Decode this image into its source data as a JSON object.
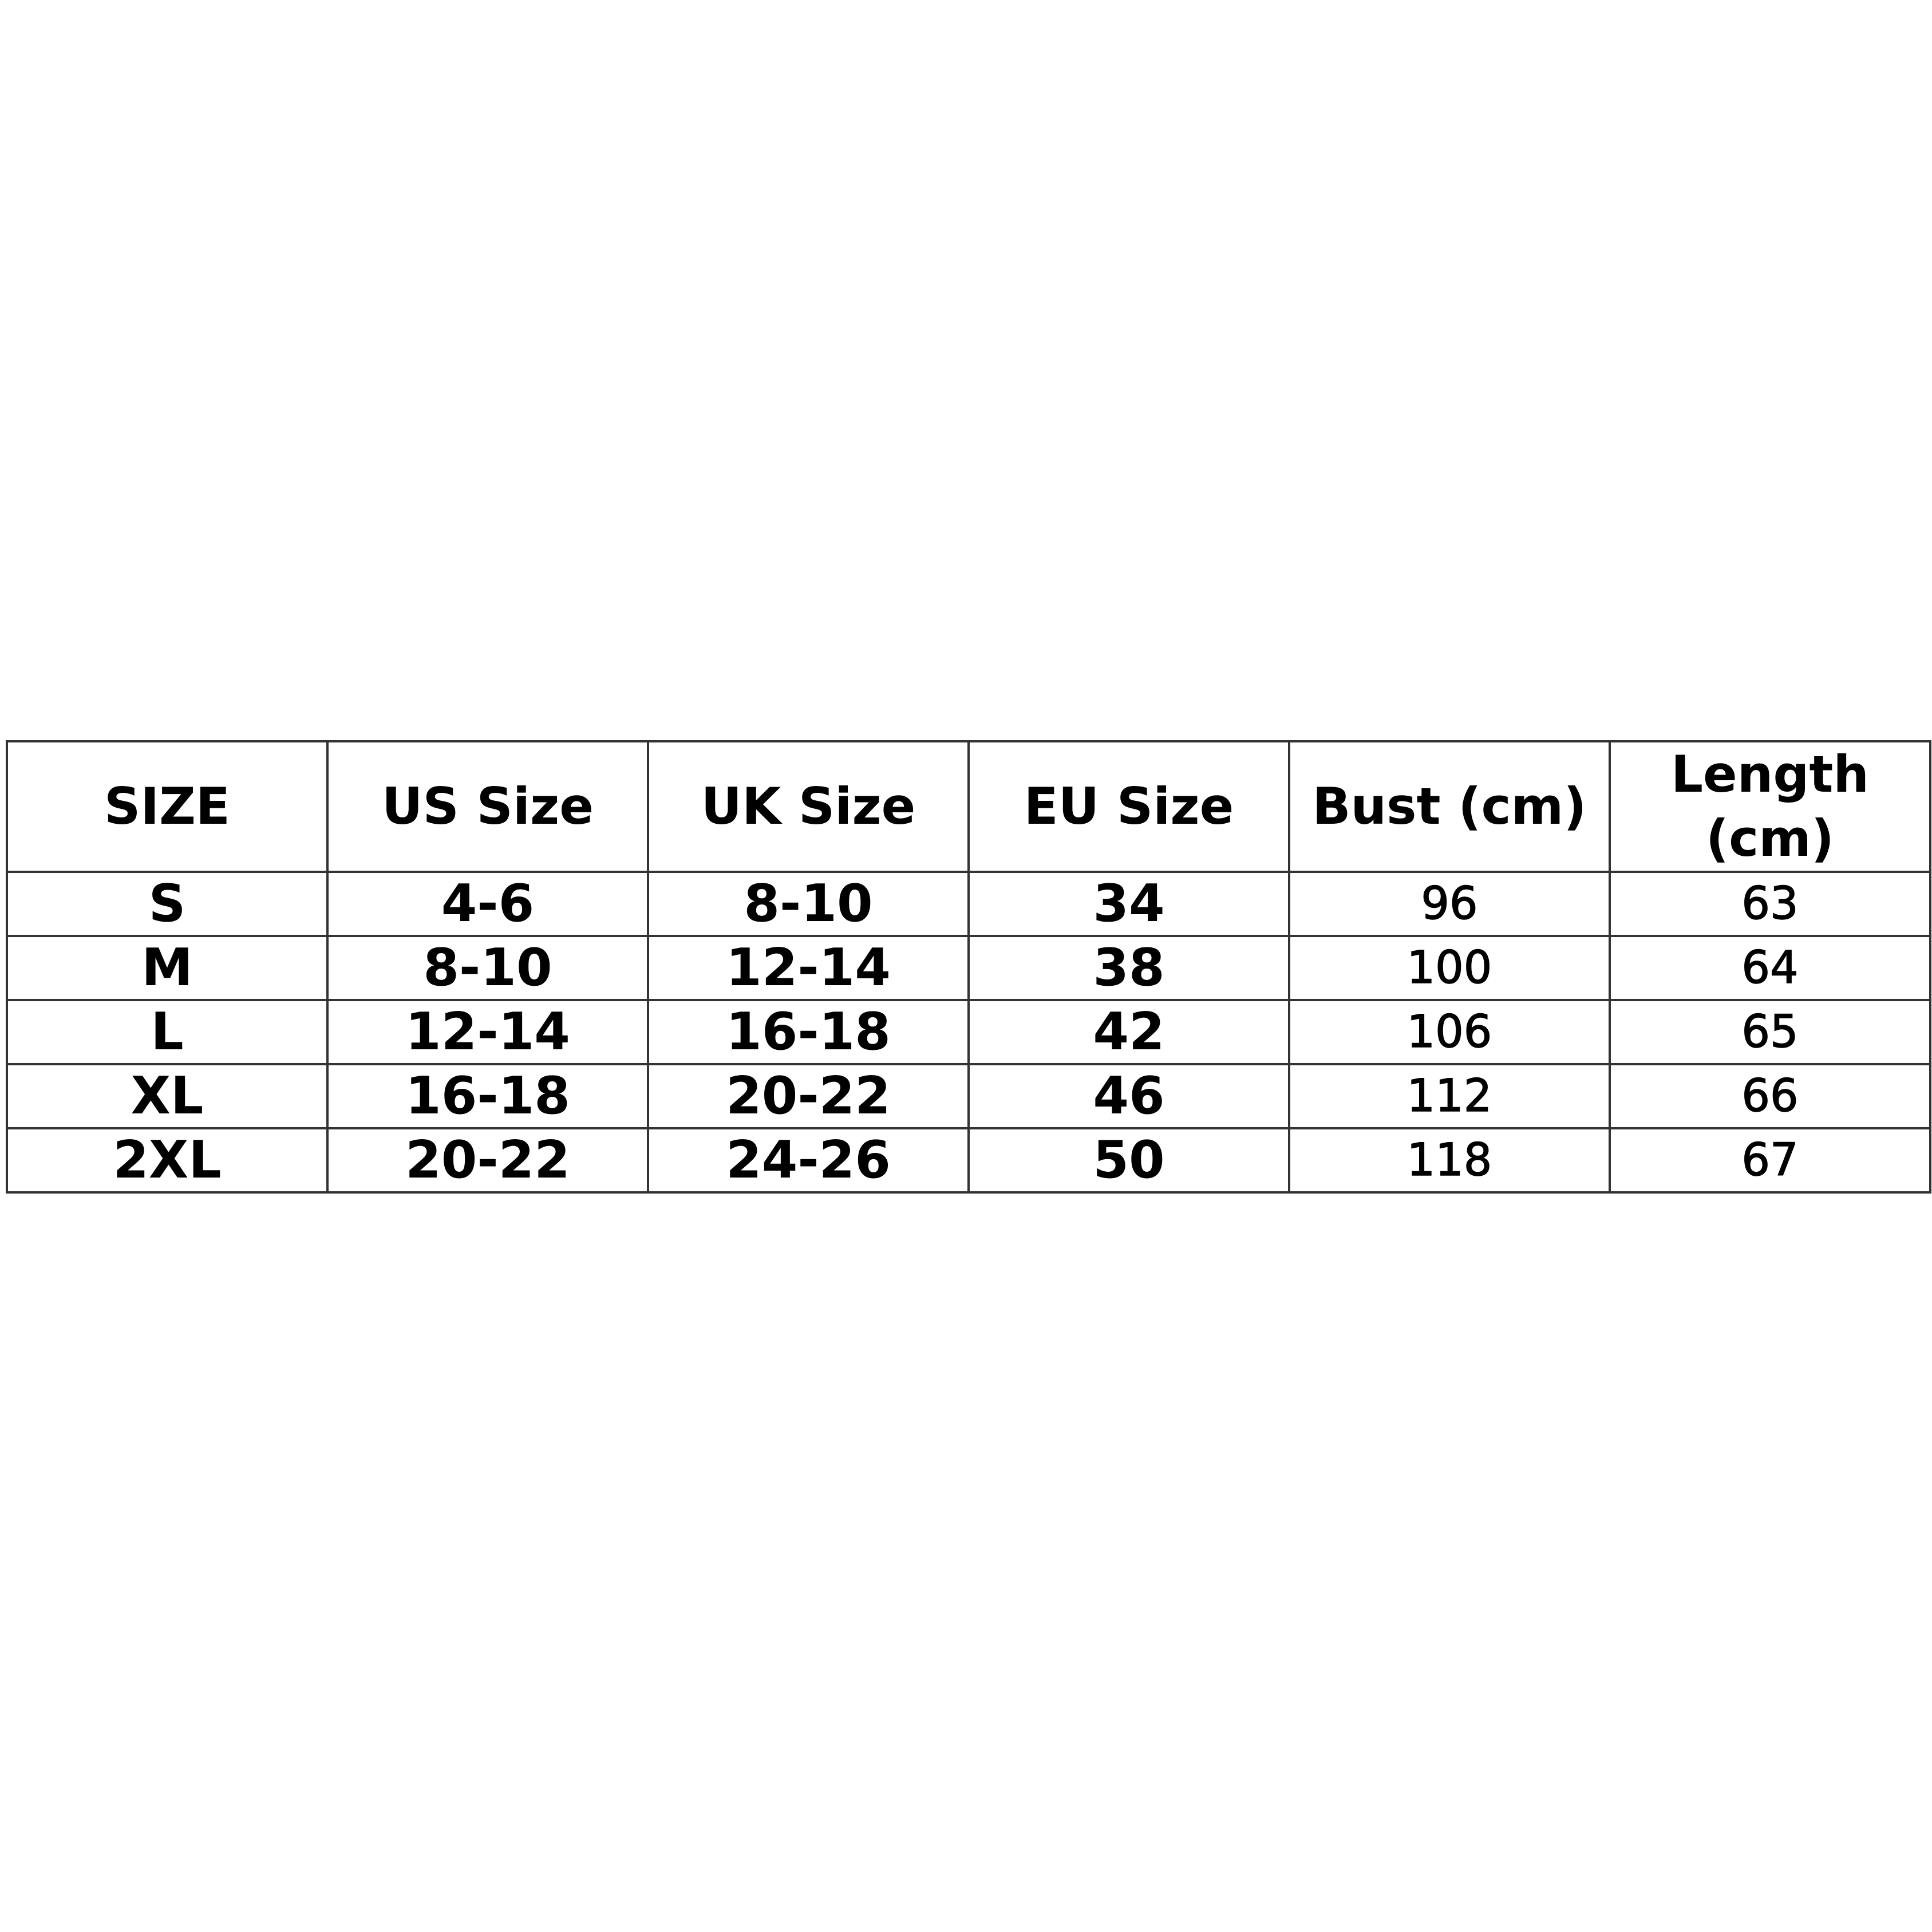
{
  "table": {
    "headers": [
      "SIZE",
      "US Size",
      "UK Size",
      "EU Size",
      "Bust (cm)",
      "Length (cm)"
    ],
    "rows": [
      [
        "S",
        "4-6",
        "8-10",
        "34",
        "96",
        "63"
      ],
      [
        "M",
        "8-10",
        "12-14",
        "38",
        "100",
        "64"
      ],
      [
        "L",
        "12-14",
        "16-18",
        "42",
        "106",
        "65"
      ],
      [
        "XL",
        "16-18",
        "20-22",
        "46",
        "112",
        "66"
      ],
      [
        "2XL",
        "20-22",
        "24-26",
        "50",
        "118",
        "67"
      ]
    ]
  }
}
